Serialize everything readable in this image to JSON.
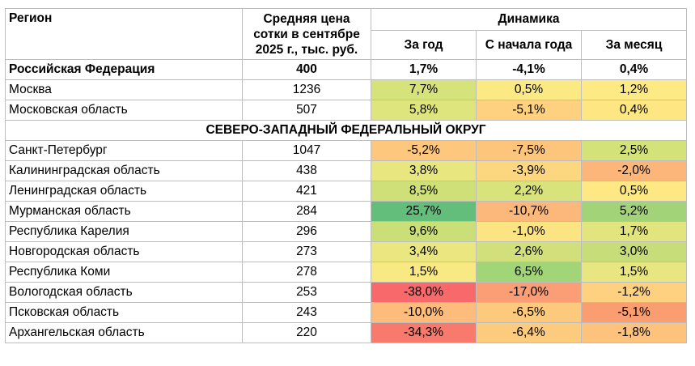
{
  "headers": {
    "region": "Регион",
    "price": "Средняя цена сотки в сентябре 2025 г., тыс. руб.",
    "dynamics": "Динамика",
    "year": "За год",
    "ytd": "С начала года",
    "month": "За месяц"
  },
  "federation": {
    "region": "Российская Федерация",
    "price": "400",
    "year": "1,7%",
    "ytd": "-4,1%",
    "month": "0,4%"
  },
  "top_rows": [
    {
      "region": "Москва",
      "price": "1236",
      "year": "7,7%",
      "ytd": "0,5%",
      "month": "1,2%",
      "colors": {
        "year": "#d6e37a",
        "ytd": "#fbea84",
        "month": "#fdea84"
      }
    },
    {
      "region": "Московская область",
      "price": "507",
      "year": "5,8%",
      "ytd": "-5,1%",
      "month": "0,4%",
      "colors": {
        "year": "#dfe57d",
        "ytd": "#fdd17f",
        "month": "#fee783"
      }
    }
  ],
  "district": "СЕВЕРО-ЗАПАДНЫЙ ФЕДЕРАЛЬНЫЙ ОКРУГ",
  "rows": [
    {
      "region": "Санкт-Петербург",
      "price": "1047",
      "year": "-5,2%",
      "ytd": "-7,5%",
      "month": "2,5%",
      "colors": {
        "year": "#fdc77d",
        "ytd": "#fdc57c",
        "month": "#d4e27a"
      }
    },
    {
      "region": "Калининградская область",
      "price": "438",
      "year": "3,8%",
      "ytd": "-3,9%",
      "month": "-2,0%",
      "colors": {
        "year": "#e8e67f",
        "ytd": "#fdd780",
        "month": "#fcb67a"
      }
    },
    {
      "region": "Ленинградская область",
      "price": "421",
      "year": "8,5%",
      "ytd": "2,2%",
      "month": "0,5%",
      "colors": {
        "year": "#d0e079",
        "ytd": "#d9e37b",
        "month": "#fee883"
      }
    },
    {
      "region": "Мурманская область",
      "price": "284",
      "year": "25,7%",
      "ytd": "-10,7%",
      "month": "5,2%",
      "colors": {
        "year": "#63be7b",
        "ytd": "#fcb77a",
        "month": "#a3d379"
      }
    },
    {
      "region": "Республика Карелия",
      "price": "296",
      "year": "9,6%",
      "ytd": "-1,0%",
      "month": "1,7%",
      "colors": {
        "year": "#cbdf79",
        "ytd": "#fde483",
        "month": "#e2e47e"
      }
    },
    {
      "region": "Новгородская область",
      "price": "273",
      "year": "3,4%",
      "ytd": "2,6%",
      "month": "3,0%",
      "colors": {
        "year": "#eae680",
        "ytd": "#d1e07a",
        "month": "#c7dd79"
      }
    },
    {
      "region": "Республика Коми",
      "price": "278",
      "year": "1,5%",
      "ytd": "6,5%",
      "month": "1,5%",
      "colors": {
        "year": "#f8e983",
        "ytd": "#a2d478",
        "month": "#e8e680"
      }
    },
    {
      "region": "Вологодская область",
      "price": "253",
      "year": "-38,0%",
      "ytd": "-17,0%",
      "month": "-1,2%",
      "colors": {
        "year": "#f8696b",
        "ytd": "#fb9d75",
        "month": "#fdd17f"
      }
    },
    {
      "region": "Псковская область",
      "price": "243",
      "year": "-10,0%",
      "ytd": "-6,5%",
      "month": "-5,1%",
      "colors": {
        "year": "#fdbc7b",
        "ytd": "#fdca7d",
        "month": "#fa9e72"
      }
    },
    {
      "region": "Архангельская область",
      "price": "220",
      "year": "-34,3%",
      "ytd": "-6,4%",
      "month": "-1,8%",
      "colors": {
        "year": "#f87a6d",
        "ytd": "#fdcb7e",
        "month": "#fdc37d"
      }
    }
  ]
}
